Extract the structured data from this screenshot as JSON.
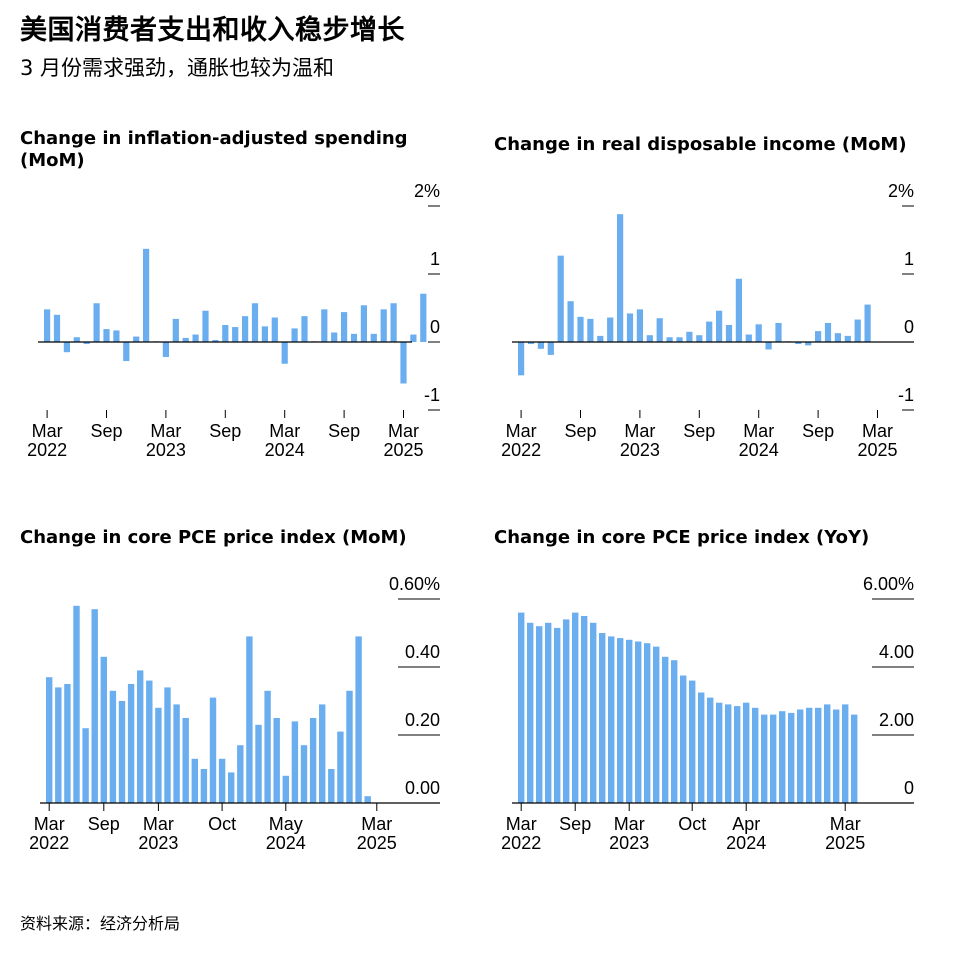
{
  "header": {
    "title": "美国消费者支出和收入稳步增长",
    "subtitle": "3 月份需求强劲，通胀也较为温和",
    "source": "资料来源：经济分析局"
  },
  "colors": {
    "bar": "#6aaef0",
    "axis": "#000000"
  },
  "chart_data": [
    {
      "type": "bar",
      "title": "Change in inflation-adjusted spending (MoM)",
      "x_ticks": [
        {
          "index": 0,
          "label": "Mar",
          "year": "2022"
        },
        {
          "index": 6,
          "label": "Sep",
          "year": ""
        },
        {
          "index": 12,
          "label": "Mar",
          "year": "2023"
        },
        {
          "index": 18,
          "label": "Sep",
          "year": ""
        },
        {
          "index": 24,
          "label": "Mar",
          "year": "2024"
        },
        {
          "index": 30,
          "label": "Sep",
          "year": ""
        },
        {
          "index": 36,
          "label": "Mar",
          "year": "2025"
        }
      ],
      "y_ticks": [
        {
          "value": 2,
          "label": "2%"
        },
        {
          "value": 1,
          "label": "1"
        },
        {
          "value": 0,
          "label": "0"
        },
        {
          "value": -1,
          "label": "-1"
        }
      ],
      "ylim": [
        -1,
        2
      ],
      "values": [
        0.48,
        0.4,
        -0.15,
        0.07,
        -0.03,
        0.57,
        0.19,
        0.17,
        -0.28,
        0.08,
        1.37,
        0.01,
        -0.22,
        0.34,
        0.06,
        0.11,
        0.46,
        0.03,
        0.25,
        0.22,
        0.38,
        0.57,
        0.23,
        0.36,
        -0.32,
        0.2,
        0.38,
        0.01,
        0.48,
        0.14,
        0.44,
        0.12,
        0.54,
        0.12,
        0.48,
        0.57,
        -0.61,
        0.11,
        0.71
      ]
    },
    {
      "type": "bar",
      "title": "Change in real disposable income (MoM)",
      "x_ticks": [
        {
          "index": 0,
          "label": "Mar",
          "year": "2022"
        },
        {
          "index": 6,
          "label": "Sep",
          "year": ""
        },
        {
          "index": 12,
          "label": "Mar",
          "year": "2023"
        },
        {
          "index": 18,
          "label": "Sep",
          "year": ""
        },
        {
          "index": 24,
          "label": "Mar",
          "year": "2024"
        },
        {
          "index": 30,
          "label": "Sep",
          "year": ""
        },
        {
          "index": 36,
          "label": "Mar",
          "year": "2025"
        }
      ],
      "y_ticks": [
        {
          "value": 2,
          "label": "2%"
        },
        {
          "value": 1,
          "label": "1"
        },
        {
          "value": 0,
          "label": "0"
        },
        {
          "value": -1,
          "label": "-1"
        }
      ],
      "ylim": [
        -1,
        2
      ],
      "values": [
        -0.49,
        -0.03,
        -0.1,
        -0.19,
        1.27,
        0.6,
        0.37,
        0.34,
        0.09,
        0.36,
        1.88,
        0.42,
        0.48,
        0.1,
        0.35,
        0.07,
        0.07,
        0.15,
        0.1,
        0.3,
        0.46,
        0.25,
        0.93,
        0.11,
        0.26,
        -0.11,
        0.28,
        0.01,
        -0.03,
        -0.05,
        0.16,
        0.28,
        0.13,
        0.09,
        0.33,
        0.55
      ]
    },
    {
      "type": "bar",
      "title": "Change in core PCE price index (MoM)",
      "x_ticks": [
        {
          "index": 0,
          "label": "Mar",
          "year": "2022"
        },
        {
          "index": 6,
          "label": "Sep",
          "year": ""
        },
        {
          "index": 12,
          "label": "Mar",
          "year": "2023"
        },
        {
          "index": 19,
          "label": "Oct",
          "year": ""
        },
        {
          "index": 26,
          "label": "May",
          "year": "2024"
        },
        {
          "index": 36,
          "label": "Mar",
          "year": "2025"
        }
      ],
      "y_ticks": [
        {
          "value": 0.6,
          "label": "0.60%"
        },
        {
          "value": 0.4,
          "label": "0.40"
        },
        {
          "value": 0.2,
          "label": "0.20"
        },
        {
          "value": 0,
          "label": "0.00"
        }
      ],
      "ylim": [
        0,
        0.6
      ],
      "values": [
        0.37,
        0.34,
        0.35,
        0.58,
        0.22,
        0.57,
        0.43,
        0.33,
        0.3,
        0.35,
        0.39,
        0.36,
        0.28,
        0.34,
        0.29,
        0.25,
        0.13,
        0.1,
        0.31,
        0.13,
        0.09,
        0.17,
        0.49,
        0.23,
        0.33,
        0.25,
        0.08,
        0.24,
        0.17,
        0.25,
        0.29,
        0.1,
        0.21,
        0.33,
        0.49,
        0.02
      ]
    },
    {
      "type": "bar",
      "title": "Change in core PCE price index (YoY)",
      "x_ticks": [
        {
          "index": 0,
          "label": "Mar",
          "year": "2022"
        },
        {
          "index": 6,
          "label": "Sep",
          "year": ""
        },
        {
          "index": 12,
          "label": "Mar",
          "year": "2023"
        },
        {
          "index": 19,
          "label": "Oct",
          "year": ""
        },
        {
          "index": 25,
          "label": "Apr",
          "year": "2024"
        },
        {
          "index": 36,
          "label": "Mar",
          "year": "2025"
        }
      ],
      "y_ticks": [
        {
          "value": 6,
          "label": "6.00%"
        },
        {
          "value": 4,
          "label": "4.00"
        },
        {
          "value": 2,
          "label": "2.00"
        },
        {
          "value": 0,
          "label": "0"
        }
      ],
      "ylim": [
        0,
        6
      ],
      "values": [
        5.6,
        5.3,
        5.2,
        5.3,
        5.15,
        5.4,
        5.6,
        5.5,
        5.3,
        5.0,
        4.9,
        4.85,
        4.8,
        4.75,
        4.7,
        4.6,
        4.3,
        4.2,
        3.75,
        3.6,
        3.25,
        3.1,
        2.95,
        2.9,
        2.85,
        2.95,
        2.8,
        2.6,
        2.6,
        2.7,
        2.65,
        2.75,
        2.8,
        2.8,
        2.9,
        2.75,
        2.9,
        2.6
      ]
    }
  ]
}
